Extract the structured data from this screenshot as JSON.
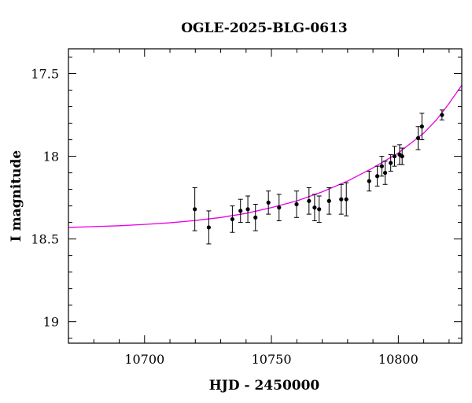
{
  "chart_data": {
    "type": "scatter",
    "title": "OGLE-2025-BLG-0613",
    "xlabel": "HJD - 2450000",
    "ylabel": "I magnitude",
    "xlim": [
      10670,
      10825
    ],
    "ylim": [
      19.13,
      17.35
    ],
    "y_inverted": true,
    "xticks": [
      10700,
      10750,
      10800
    ],
    "xtick_labels": [
      "10700",
      "10750",
      "10800"
    ],
    "yticks": [
      17.5,
      18,
      18.5,
      19
    ],
    "ytick_labels": [
      "17.5",
      "18",
      "18.5",
      "19"
    ],
    "grid": false,
    "colors": {
      "points": "#000000",
      "model": "#e800e8",
      "axes": "#000000"
    },
    "series": [
      {
        "type": "scatter_errorbar",
        "points": [
          {
            "x": 10719.8,
            "y": 18.32,
            "err": 0.13
          },
          {
            "x": 10725.3,
            "y": 18.43,
            "err": 0.1
          },
          {
            "x": 10734.6,
            "y": 18.38,
            "err": 0.08
          },
          {
            "x": 10737.8,
            "y": 18.33,
            "err": 0.07
          },
          {
            "x": 10740.7,
            "y": 18.32,
            "err": 0.08
          },
          {
            "x": 10743.7,
            "y": 18.37,
            "err": 0.08
          },
          {
            "x": 10748.8,
            "y": 18.28,
            "err": 0.07
          },
          {
            "x": 10753.0,
            "y": 18.31,
            "err": 0.08
          },
          {
            "x": 10759.9,
            "y": 18.29,
            "err": 0.08
          },
          {
            "x": 10764.8,
            "y": 18.27,
            "err": 0.08
          },
          {
            "x": 10767.0,
            "y": 18.31,
            "err": 0.08
          },
          {
            "x": 10768.8,
            "y": 18.32,
            "err": 0.08
          },
          {
            "x": 10772.7,
            "y": 18.27,
            "err": 0.08
          },
          {
            "x": 10777.5,
            "y": 18.26,
            "err": 0.09
          },
          {
            "x": 10779.5,
            "y": 18.26,
            "err": 0.1
          },
          {
            "x": 10788.5,
            "y": 18.15,
            "err": 0.06
          },
          {
            "x": 10791.7,
            "y": 18.12,
            "err": 0.06
          },
          {
            "x": 10793.5,
            "y": 18.06,
            "err": 0.06
          },
          {
            "x": 10794.8,
            "y": 18.1,
            "err": 0.07
          },
          {
            "x": 10797.0,
            "y": 18.04,
            "err": 0.05
          },
          {
            "x": 10798.5,
            "y": 18.0,
            "err": 0.06
          },
          {
            "x": 10800.5,
            "y": 17.99,
            "err": 0.06
          },
          {
            "x": 10801.5,
            "y": 18.0,
            "err": 0.05
          },
          {
            "x": 10807.8,
            "y": 17.89,
            "err": 0.07
          },
          {
            "x": 10809.3,
            "y": 17.82,
            "err": 0.08
          },
          {
            "x": 10817.2,
            "y": 17.75,
            "err": 0.03
          }
        ]
      },
      {
        "type": "line",
        "x": [
          10670,
          10680,
          10690,
          10700,
          10710,
          10720,
          10730,
          10740,
          10750,
          10760,
          10770,
          10780,
          10790,
          10800,
          10810,
          10815,
          10820,
          10825
        ],
        "y": [
          18.43,
          18.425,
          18.42,
          18.412,
          18.402,
          18.388,
          18.37,
          18.345,
          18.31,
          18.27,
          18.215,
          18.15,
          18.07,
          17.98,
          17.86,
          17.78,
          17.68,
          17.57
        ]
      }
    ]
  }
}
